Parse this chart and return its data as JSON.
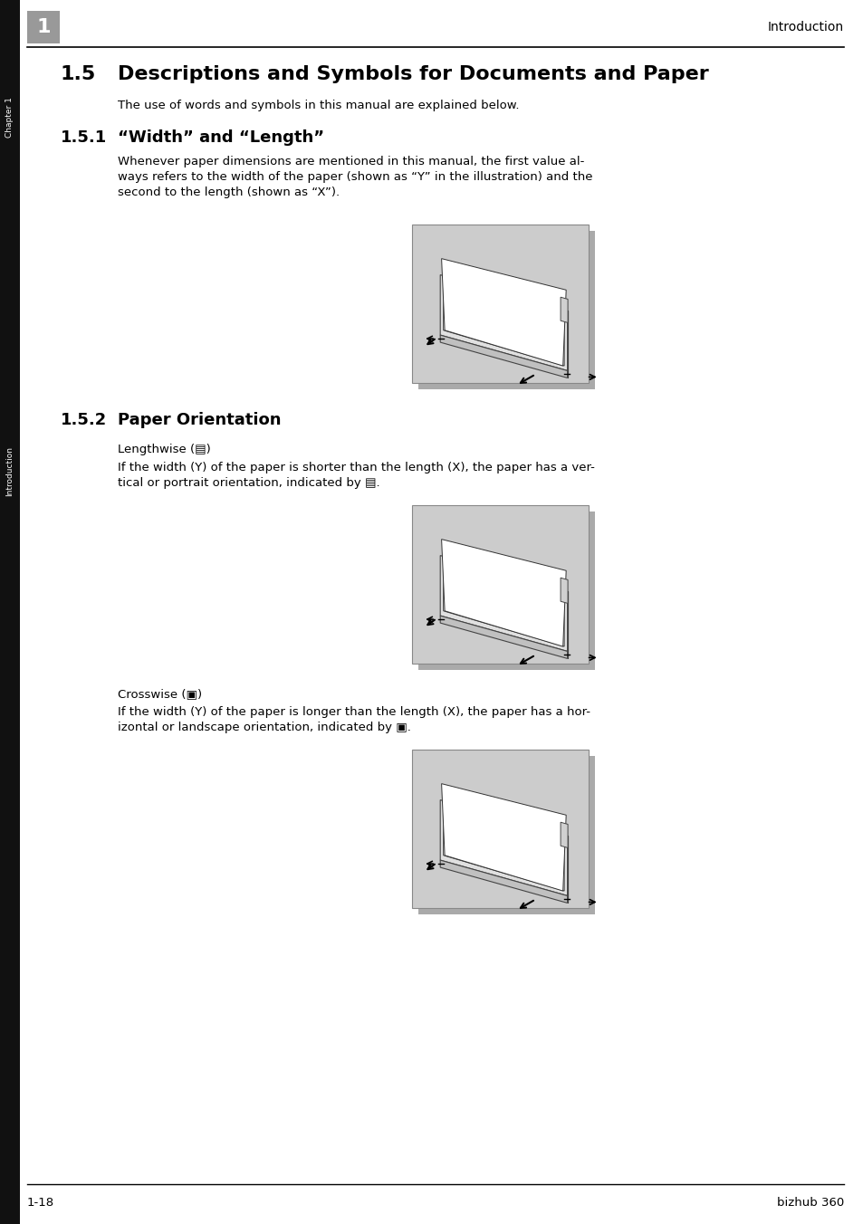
{
  "page_bg": "#ffffff",
  "sidebar_bg": "#111111",
  "sidebar_text_color": "#ffffff",
  "sidebar_chapter_text": "Chapter 1",
  "sidebar_intro_text": "Introduction",
  "header_number_box_color": "#999999",
  "header_number": "1",
  "header_right_text": "Introduction",
  "header_line_color": "#000000",
  "title_section": "1.5",
  "title_text": "Descriptions and Symbols for Documents and Paper",
  "intro_text": "The use of words and symbols in this manual are explained below.",
  "section_151": "1.5.1",
  "section_151_title": "“Width” and “Length”",
  "body_151_line1": "Whenever paper dimensions are mentioned in this manual, the first value al-",
  "body_151_line2": "ways refers to the width of the paper (shown as “Y” in the illustration) and the",
  "body_151_line3": "second to the length (shown as “X”).",
  "section_152": "1.5.2",
  "section_152_title": "Paper Orientation",
  "lengthwise_label": "Lengthwise (▤)",
  "lengthwise_body_line1": "If the width (Y) of the paper is shorter than the length (X), the paper has a ver-",
  "lengthwise_body_line2": "tical or portrait orientation, indicated by ▤.",
  "crosswise_label": "Crosswise (▣)",
  "crosswise_body_line1": "If the width (Y) of the paper is longer than the length (X), the paper has a hor-",
  "crosswise_body_line2": "izontal or landscape orientation, indicated by ▣.",
  "footer_left": "1-18",
  "footer_right": "bizhub 360",
  "footer_line_color": "#000000",
  "image_bg": "#cccccc",
  "image_border": "#888888",
  "shadow_color": "#aaaaaa"
}
